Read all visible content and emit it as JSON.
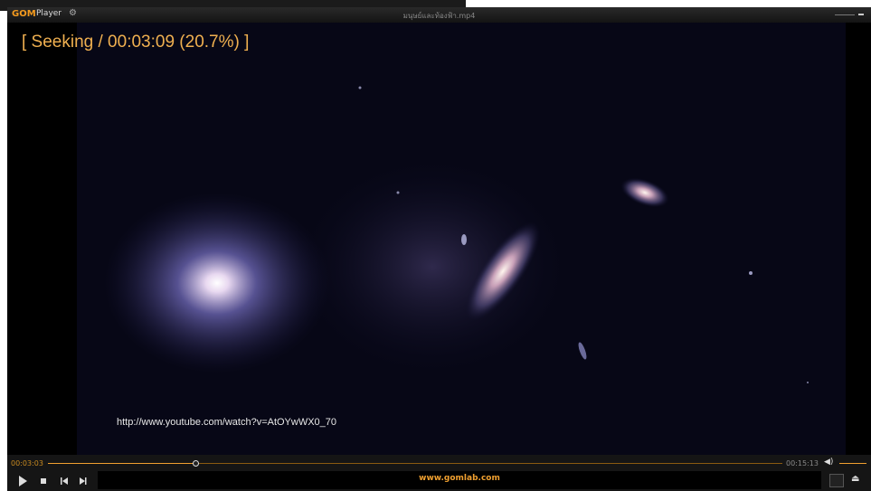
{
  "window": {
    "logo_brand": "GOM",
    "logo_product": "Player",
    "file_title": "มนุษย์และท้องฟ้า.mp4"
  },
  "video": {
    "osd": "[ Seeking / 00:03:09 (20.7%) ]",
    "watermark": "http://www.youtube.com/watch?v=AtOYwWX0_70"
  },
  "controls": {
    "elapsed": "00:03:03",
    "duration": "00:15:13",
    "banner": "www.gomlab.com"
  }
}
